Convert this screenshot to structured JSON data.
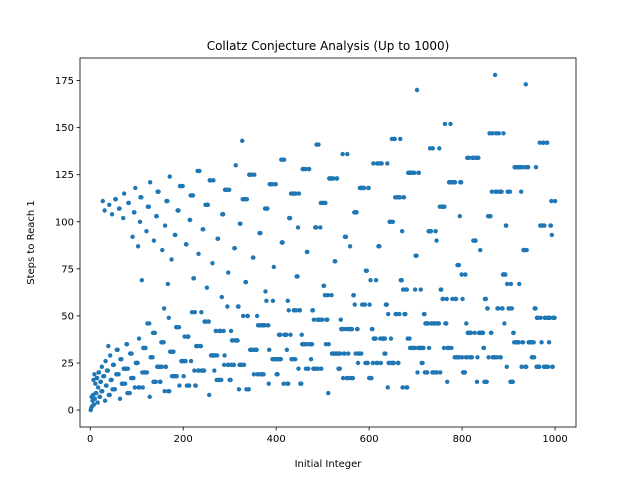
{
  "chart_data": {
    "type": "scatter",
    "title": "Collatz Conjecture Analysis (Up to 1000)",
    "xlabel": "Initial Integer",
    "ylabel": "Steps to Reach 1",
    "xlim": [
      -22,
      1045
    ],
    "ylim": [
      -9,
      187
    ],
    "xticks": [
      0,
      200,
      400,
      600,
      800,
      1000
    ],
    "yticks": [
      0,
      25,
      50,
      75,
      100,
      125,
      150,
      175
    ],
    "grid": false,
    "legend": "none",
    "marker_color": "#1f77b4",
    "series_formula": "steps(n) = number of Collatz iterations (n -> n/2 if even, 3n+1 if odd) until reaching 1",
    "x": {
      "start": 1,
      "end": 1000,
      "step": 1
    },
    "highlight_points": [
      {
        "x": 27,
        "y": 111
      },
      {
        "x": 703,
        "y": 170
      },
      {
        "x": 871,
        "y": 178
      },
      {
        "x": 937,
        "y": 173
      }
    ]
  }
}
